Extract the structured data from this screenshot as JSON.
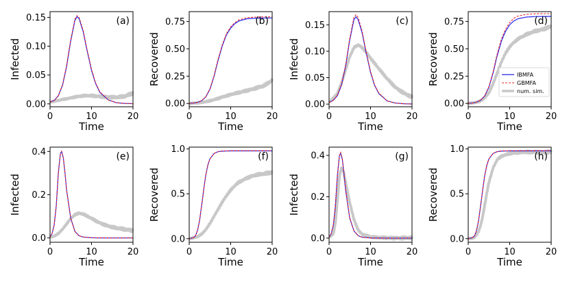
{
  "colors": {
    "ibmfa": "#2222ee",
    "gbmfa": "#ee2222",
    "numsim": "#c8c8c8",
    "overlap": "#8a0060"
  },
  "legend": {
    "ibmfa": "IBMFA",
    "gbmfa": "GBMFA",
    "numsim": "num. sim."
  },
  "chart_data": [
    {
      "panel": "(a)",
      "type": "line",
      "xlabel": "Time",
      "ylabel": "Infected",
      "xlim": [
        0,
        20
      ],
      "ylim": [
        -0.005,
        0.16
      ],
      "xticks": [
        "0",
        "10",
        "20"
      ],
      "yticks": [
        "0.00",
        "0.05",
        "0.10",
        "0.15"
      ],
      "ytick_values": [
        0,
        0.05,
        0.1,
        0.15
      ],
      "series": [
        {
          "name": "IBMFA",
          "x": [
            0,
            1,
            2,
            3,
            4,
            5,
            6,
            6.5,
            7,
            8,
            9,
            10,
            11,
            12,
            14,
            16,
            18,
            20
          ],
          "y": [
            0.003,
            0.006,
            0.014,
            0.032,
            0.065,
            0.11,
            0.145,
            0.151,
            0.148,
            0.125,
            0.09,
            0.058,
            0.035,
            0.02,
            0.007,
            0.002,
            0.0008,
            0.0003
          ]
        },
        {
          "name": "GBMFA",
          "x": [
            0,
            1,
            2,
            3,
            4,
            5,
            6,
            6.5,
            7,
            8,
            9,
            10,
            11,
            12,
            14,
            16,
            18,
            20
          ],
          "y": [
            0.003,
            0.006,
            0.014,
            0.033,
            0.067,
            0.112,
            0.147,
            0.153,
            0.15,
            0.127,
            0.092,
            0.06,
            0.036,
            0.021,
            0.007,
            0.002,
            0.0008,
            0.0003
          ]
        },
        {
          "name": "num. sim.",
          "x": [
            0,
            2,
            4,
            6,
            8,
            10,
            12,
            14,
            16,
            18,
            19,
            20
          ],
          "y": [
            0.003,
            0.006,
            0.009,
            0.012,
            0.014,
            0.014,
            0.013,
            0.012,
            0.011,
            0.013,
            0.016,
            0.019
          ]
        }
      ]
    },
    {
      "panel": "(b)",
      "type": "line",
      "xlabel": "Time",
      "ylabel": "Recovered",
      "xlim": [
        0,
        20
      ],
      "ylim": [
        -0.03,
        0.84
      ],
      "xticks": [
        "0",
        "10",
        "20"
      ],
      "yticks": [
        "0.00",
        "0.25",
        "0.50",
        "0.75"
      ],
      "ytick_values": [
        0,
        0.25,
        0.5,
        0.75
      ],
      "series": [
        {
          "name": "IBMFA",
          "x": [
            0,
            1,
            2,
            3,
            4,
            5,
            6,
            7,
            8,
            9,
            10,
            11,
            12,
            14,
            16,
            18,
            20
          ],
          "y": [
            0.001,
            0.004,
            0.01,
            0.025,
            0.06,
            0.13,
            0.25,
            0.4,
            0.53,
            0.63,
            0.69,
            0.73,
            0.755,
            0.775,
            0.78,
            0.782,
            0.782
          ]
        },
        {
          "name": "GBMFA",
          "x": [
            0,
            1,
            2,
            3,
            4,
            5,
            6,
            7,
            8,
            9,
            10,
            11,
            12,
            14,
            16,
            18,
            20
          ],
          "y": [
            0.001,
            0.004,
            0.01,
            0.026,
            0.062,
            0.135,
            0.256,
            0.41,
            0.54,
            0.64,
            0.7,
            0.74,
            0.765,
            0.785,
            0.79,
            0.792,
            0.792
          ]
        },
        {
          "name": "num. sim.",
          "x": [
            0,
            2,
            4,
            6,
            8,
            10,
            12,
            14,
            16,
            18,
            19,
            20
          ],
          "y": [
            0,
            0.005,
            0.015,
            0.035,
            0.06,
            0.08,
            0.1,
            0.12,
            0.14,
            0.16,
            0.185,
            0.21
          ]
        }
      ]
    },
    {
      "panel": "(c)",
      "type": "line",
      "xlabel": "Time",
      "ylabel": "Infected",
      "xlim": [
        0,
        20
      ],
      "ylim": [
        -0.005,
        0.175
      ],
      "xticks": [
        "0",
        "10",
        "20"
      ],
      "yticks": [
        "0.00",
        "0.05",
        "0.10",
        "0.15"
      ],
      "ytick_values": [
        0,
        0.05,
        0.1,
        0.15
      ],
      "series": [
        {
          "name": "IBMFA",
          "x": [
            0,
            1,
            2,
            3,
            4,
            5,
            6,
            6.5,
            7,
            8,
            9,
            10,
            11,
            12,
            14,
            16,
            18,
            20
          ],
          "y": [
            0.003,
            0.007,
            0.016,
            0.036,
            0.072,
            0.122,
            0.16,
            0.165,
            0.16,
            0.134,
            0.095,
            0.06,
            0.035,
            0.02,
            0.006,
            0.002,
            0.0007,
            0.0002
          ]
        },
        {
          "name": "GBMFA",
          "x": [
            0,
            1,
            2,
            3,
            4,
            5,
            6,
            6.5,
            7,
            8,
            9,
            10,
            11,
            12,
            14,
            16,
            18,
            20
          ],
          "y": [
            0.003,
            0.007,
            0.017,
            0.037,
            0.074,
            0.125,
            0.164,
            0.169,
            0.164,
            0.137,
            0.097,
            0.062,
            0.036,
            0.021,
            0.006,
            0.002,
            0.0007,
            0.0002
          ]
        },
        {
          "name": "num. sim.",
          "x": [
            0,
            2,
            3,
            4,
            5,
            6,
            7,
            8,
            9,
            10,
            11,
            12,
            14,
            16,
            18,
            20
          ],
          "y": [
            0.003,
            0.02,
            0.04,
            0.065,
            0.09,
            0.107,
            0.112,
            0.107,
            0.098,
            0.087,
            0.077,
            0.067,
            0.048,
            0.032,
            0.021,
            0.013
          ]
        }
      ]
    },
    {
      "panel": "(d)",
      "type": "line",
      "xlabel": "Time",
      "ylabel": "Recovered",
      "xlim": [
        0,
        20
      ],
      "ylim": [
        -0.03,
        0.84
      ],
      "xticks": [
        "0",
        "10",
        "20"
      ],
      "yticks": [
        "0.00",
        "0.25",
        "0.50",
        "0.75"
      ],
      "ytick_values": [
        0,
        0.25,
        0.5,
        0.75
      ],
      "legend_position": "right",
      "series": [
        {
          "name": "IBMFA",
          "x": [
            0,
            1,
            2,
            3,
            4,
            5,
            6,
            7,
            8,
            9,
            10,
            11,
            12,
            14,
            16,
            18,
            20
          ],
          "y": [
            0.001,
            0.004,
            0.012,
            0.03,
            0.07,
            0.15,
            0.28,
            0.44,
            0.57,
            0.66,
            0.72,
            0.755,
            0.775,
            0.79,
            0.795,
            0.796,
            0.796
          ]
        },
        {
          "name": "GBMFA",
          "x": [
            0,
            1,
            2,
            3,
            4,
            5,
            6,
            7,
            8,
            9,
            10,
            11,
            12,
            14,
            16,
            18,
            20
          ],
          "y": [
            0.001,
            0.004,
            0.012,
            0.031,
            0.072,
            0.155,
            0.29,
            0.455,
            0.59,
            0.68,
            0.74,
            0.78,
            0.8,
            0.815,
            0.82,
            0.821,
            0.821
          ]
        },
        {
          "name": "num. sim.",
          "x": [
            0,
            2,
            3,
            4,
            5,
            6,
            7,
            8,
            9,
            10,
            11,
            12,
            14,
            16,
            18,
            20
          ],
          "y": [
            0.001,
            0.01,
            0.025,
            0.05,
            0.1,
            0.18,
            0.28,
            0.38,
            0.46,
            0.52,
            0.56,
            0.59,
            0.63,
            0.66,
            0.68,
            0.705
          ]
        }
      ]
    },
    {
      "panel": "(e)",
      "type": "line",
      "xlabel": "Time",
      "ylabel": "Infected",
      "xlim": [
        0,
        20
      ],
      "ylim": [
        -0.02,
        0.42
      ],
      "xticks": [
        "0",
        "10",
        "20"
      ],
      "yticks": [
        "0.0",
        "0.2",
        "0.4"
      ],
      "ytick_values": [
        0,
        0.2,
        0.4
      ],
      "series": [
        {
          "name": "IBMFA",
          "x": [
            0,
            0.5,
            1,
            1.5,
            2,
            2.5,
            2.8,
            3.2,
            3.6,
            4,
            5,
            6,
            7,
            8,
            10,
            12,
            14,
            16,
            20
          ],
          "y": [
            0.005,
            0.02,
            0.06,
            0.15,
            0.3,
            0.39,
            0.4,
            0.37,
            0.3,
            0.22,
            0.09,
            0.03,
            0.01,
            0.004,
            0.0008,
            0.0002,
            0,
            0,
            0
          ]
        },
        {
          "name": "GBMFA",
          "x": [
            0,
            0.5,
            1,
            1.5,
            2,
            2.5,
            2.8,
            3.2,
            3.6,
            4,
            5,
            6,
            7,
            8,
            10,
            12,
            14,
            16,
            20
          ],
          "y": [
            0.005,
            0.02,
            0.06,
            0.15,
            0.3,
            0.39,
            0.4,
            0.37,
            0.3,
            0.22,
            0.09,
            0.03,
            0.01,
            0.004,
            0.0008,
            0.0002,
            0,
            0,
            0
          ]
        },
        {
          "name": "num. sim.",
          "x": [
            0,
            1,
            2,
            3,
            4,
            5,
            6,
            7,
            8,
            9,
            10,
            12,
            14,
            16,
            18,
            20
          ],
          "y": [
            0.003,
            0.008,
            0.02,
            0.04,
            0.065,
            0.09,
            0.108,
            0.114,
            0.11,
            0.1,
            0.09,
            0.07,
            0.055,
            0.045,
            0.04,
            0.035
          ]
        }
      ]
    },
    {
      "panel": "(f)",
      "type": "line",
      "xlabel": "Time",
      "ylabel": "Recovered",
      "xlim": [
        0,
        20
      ],
      "ylim": [
        -0.04,
        1.02
      ],
      "xticks": [
        "0",
        "10",
        "20"
      ],
      "yticks": [
        "0.0",
        "0.5",
        "1.0"
      ],
      "ytick_values": [
        0,
        0.5,
        1
      ],
      "series": [
        {
          "name": "IBMFA",
          "x": [
            0,
            1,
            1.5,
            2,
            2.5,
            3,
            3.5,
            4,
            4.5,
            5,
            6,
            7,
            8,
            10,
            20
          ],
          "y": [
            0,
            0.01,
            0.03,
            0.09,
            0.2,
            0.37,
            0.55,
            0.71,
            0.82,
            0.89,
            0.95,
            0.97,
            0.975,
            0.978,
            0.978
          ]
        },
        {
          "name": "GBMFA",
          "x": [
            0,
            1,
            1.5,
            2,
            2.5,
            3,
            3.5,
            4,
            4.5,
            5,
            6,
            7,
            8,
            10,
            20
          ],
          "y": [
            0,
            0.01,
            0.03,
            0.09,
            0.2,
            0.37,
            0.55,
            0.71,
            0.82,
            0.89,
            0.95,
            0.97,
            0.978,
            0.98,
            0.98
          ]
        },
        {
          "name": "num. sim.",
          "x": [
            0,
            2,
            3,
            4,
            5,
            6,
            7,
            8,
            9,
            10,
            11,
            12,
            14,
            16,
            18,
            20
          ],
          "y": [
            0,
            0.02,
            0.05,
            0.1,
            0.17,
            0.25,
            0.33,
            0.41,
            0.48,
            0.54,
            0.59,
            0.63,
            0.68,
            0.71,
            0.72,
            0.74
          ]
        }
      ]
    },
    {
      "panel": "(g)",
      "type": "line",
      "xlabel": "Time",
      "ylabel": "Infected",
      "xlim": [
        0,
        20
      ],
      "ylim": [
        -0.02,
        0.44
      ],
      "xticks": [
        "0",
        "10",
        "20"
      ],
      "yticks": [
        "0.0",
        "0.2",
        "0.4"
      ],
      "ytick_values": [
        0,
        0.2,
        0.4
      ],
      "series": [
        {
          "name": "IBMFA",
          "x": [
            0,
            0.5,
            1,
            1.5,
            2,
            2.5,
            2.8,
            3.2,
            3.6,
            4,
            5,
            6,
            7,
            8,
            10,
            12,
            14,
            20
          ],
          "y": [
            0.005,
            0.02,
            0.06,
            0.15,
            0.3,
            0.4,
            0.41,
            0.38,
            0.31,
            0.23,
            0.095,
            0.035,
            0.012,
            0.004,
            0.0008,
            0.0002,
            0,
            0
          ]
        },
        {
          "name": "GBMFA",
          "x": [
            0,
            0.5,
            1,
            1.5,
            2,
            2.5,
            2.8,
            3.2,
            3.6,
            4,
            5,
            6,
            7,
            8,
            10,
            12,
            14,
            20
          ],
          "y": [
            0.005,
            0.02,
            0.06,
            0.15,
            0.3,
            0.4,
            0.415,
            0.385,
            0.315,
            0.235,
            0.097,
            0.036,
            0.012,
            0.004,
            0.0008,
            0.0002,
            0,
            0
          ]
        },
        {
          "name": "num. sim.",
          "x": [
            0,
            1,
            1.5,
            2,
            2.5,
            3,
            3.5,
            4,
            5,
            6,
            7,
            8,
            10,
            12,
            16,
            20
          ],
          "y": [
            0.003,
            0.02,
            0.07,
            0.18,
            0.3,
            0.34,
            0.32,
            0.27,
            0.17,
            0.09,
            0.04,
            0.018,
            0.006,
            0.002,
            0.001,
            0
          ]
        }
      ]
    },
    {
      "panel": "(h)",
      "type": "line",
      "xlabel": "Time",
      "ylabel": "Recovered",
      "xlim": [
        0,
        20
      ],
      "ylim": [
        -0.04,
        1.02
      ],
      "xticks": [
        "0",
        "10",
        "20"
      ],
      "yticks": [
        "0.0",
        "0.5",
        "1.0"
      ],
      "ytick_values": [
        0,
        0.5,
        1
      ],
      "series": [
        {
          "name": "IBMFA",
          "x": [
            0,
            1,
            1.5,
            2,
            2.5,
            3,
            3.5,
            4,
            4.5,
            5,
            6,
            7,
            8,
            10,
            20
          ],
          "y": [
            0,
            0.01,
            0.03,
            0.09,
            0.2,
            0.37,
            0.55,
            0.71,
            0.82,
            0.89,
            0.95,
            0.97,
            0.975,
            0.978,
            0.978
          ]
        },
        {
          "name": "GBMFA",
          "x": [
            0,
            1,
            1.5,
            2,
            2.5,
            3,
            3.5,
            4,
            4.5,
            5,
            6,
            7,
            8,
            10,
            20
          ],
          "y": [
            0,
            0.01,
            0.03,
            0.09,
            0.2,
            0.37,
            0.55,
            0.71,
            0.82,
            0.89,
            0.95,
            0.97,
            0.978,
            0.98,
            0.98
          ]
        },
        {
          "name": "num. sim.",
          "x": [
            0,
            1,
            1.5,
            2,
            2.5,
            3,
            3.5,
            4,
            4.5,
            5,
            6,
            7,
            8,
            10,
            12,
            16,
            20
          ],
          "y": [
            0,
            0.005,
            0.015,
            0.04,
            0.08,
            0.15,
            0.25,
            0.38,
            0.51,
            0.63,
            0.79,
            0.88,
            0.92,
            0.95,
            0.96,
            0.965,
            0.965
          ]
        }
      ]
    }
  ]
}
